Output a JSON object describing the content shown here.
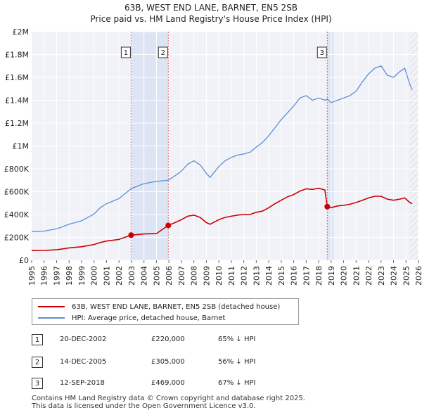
{
  "chart_data": {
    "type": "line",
    "title": "63B, WEST END LANE, BARNET, EN5 2SB",
    "subtitle": "Price paid vs. HM Land Registry's House Price Index (HPI)",
    "xlabel": "",
    "ylabel": "",
    "xlim": [
      1995,
      2026
    ],
    "ylim": [
      0,
      2000000
    ],
    "x_ticks": [
      "1995",
      "1996",
      "1997",
      "1998",
      "1999",
      "2000",
      "2001",
      "2002",
      "2003",
      "2004",
      "2005",
      "2006",
      "2007",
      "2008",
      "2009",
      "2010",
      "2011",
      "2012",
      "2013",
      "2014",
      "2015",
      "2016",
      "2017",
      "2018",
      "2019",
      "2020",
      "2021",
      "2022",
      "2023",
      "2024",
      "2025",
      "2026"
    ],
    "y_ticks": [
      {
        "value": 0,
        "label": "£0"
      },
      {
        "value": 200000,
        "label": "£200K"
      },
      {
        "value": 400000,
        "label": "£400K"
      },
      {
        "value": 600000,
        "label": "£600K"
      },
      {
        "value": 800000,
        "label": "£800K"
      },
      {
        "value": 1000000,
        "label": "£1M"
      },
      {
        "value": 1200000,
        "label": "£1.2M"
      },
      {
        "value": 1400000,
        "label": "£1.4M"
      },
      {
        "value": 1600000,
        "label": "£1.6M"
      },
      {
        "value": 1800000,
        "label": "£1.8M"
      },
      {
        "value": 2000000,
        "label": "£2M"
      }
    ],
    "grid": true,
    "series": [
      {
        "name": "63B, WEST END LANE, BARNET, EN5 2SB (detached house)",
        "color": "#cc0000",
        "points": [
          [
            1995.0,
            85000
          ],
          [
            1996.0,
            86000
          ],
          [
            1997.0,
            92000
          ],
          [
            1997.5,
            100000
          ],
          [
            1998.0,
            108000
          ],
          [
            1999.0,
            118000
          ],
          [
            2000.0,
            138000
          ],
          [
            2000.5,
            155000
          ],
          [
            2001.0,
            168000
          ],
          [
            2002.0,
            182000
          ],
          [
            2002.97,
            220000
          ],
          [
            2003.5,
            225000
          ],
          [
            2004.0,
            230000
          ],
          [
            2005.0,
            233000
          ],
          [
            2005.95,
            305000
          ],
          [
            2006.5,
            330000
          ],
          [
            2007.0,
            355000
          ],
          [
            2007.5,
            385000
          ],
          [
            2008.0,
            395000
          ],
          [
            2008.5,
            375000
          ],
          [
            2009.0,
            330000
          ],
          [
            2009.3,
            315000
          ],
          [
            2010.0,
            355000
          ],
          [
            2010.5,
            375000
          ],
          [
            2011.0,
            385000
          ],
          [
            2011.5,
            395000
          ],
          [
            2012.0,
            400000
          ],
          [
            2012.5,
            400000
          ],
          [
            2013.0,
            420000
          ],
          [
            2013.5,
            430000
          ],
          [
            2014.0,
            460000
          ],
          [
            2014.5,
            495000
          ],
          [
            2015.0,
            525000
          ],
          [
            2015.5,
            555000
          ],
          [
            2016.0,
            575000
          ],
          [
            2016.5,
            605000
          ],
          [
            2017.0,
            625000
          ],
          [
            2017.5,
            620000
          ],
          [
            2018.0,
            630000
          ],
          [
            2018.5,
            615000
          ],
          [
            2018.69,
            469000
          ],
          [
            2019.0,
            460000
          ],
          [
            2019.5,
            475000
          ],
          [
            2020.0,
            480000
          ],
          [
            2020.5,
            490000
          ],
          [
            2021.0,
            505000
          ],
          [
            2021.5,
            525000
          ],
          [
            2022.0,
            545000
          ],
          [
            2022.5,
            560000
          ],
          [
            2023.0,
            560000
          ],
          [
            2023.5,
            535000
          ],
          [
            2024.0,
            525000
          ],
          [
            2024.5,
            535000
          ],
          [
            2024.9,
            545000
          ],
          [
            2025.3,
            505000
          ],
          [
            2025.5,
            495000
          ]
        ]
      },
      {
        "name": "HPI: Average price, detached house, Barnet",
        "color": "#5b8fd4",
        "points": [
          [
            1995.0,
            250000
          ],
          [
            1996.0,
            255000
          ],
          [
            1997.0,
            275000
          ],
          [
            1997.5,
            295000
          ],
          [
            1998.0,
            315000
          ],
          [
            1999.0,
            345000
          ],
          [
            2000.0,
            405000
          ],
          [
            2000.5,
            460000
          ],
          [
            2001.0,
            495000
          ],
          [
            2002.0,
            540000
          ],
          [
            2002.97,
            625000
          ],
          [
            2003.5,
            650000
          ],
          [
            2004.0,
            670000
          ],
          [
            2005.0,
            690000
          ],
          [
            2005.95,
            700000
          ],
          [
            2006.5,
            740000
          ],
          [
            2007.0,
            780000
          ],
          [
            2007.5,
            840000
          ],
          [
            2008.0,
            870000
          ],
          [
            2008.5,
            835000
          ],
          [
            2009.0,
            760000
          ],
          [
            2009.3,
            725000
          ],
          [
            2010.0,
            820000
          ],
          [
            2010.5,
            870000
          ],
          [
            2011.0,
            900000
          ],
          [
            2011.5,
            920000
          ],
          [
            2012.0,
            930000
          ],
          [
            2012.5,
            945000
          ],
          [
            2013.0,
            990000
          ],
          [
            2013.5,
            1030000
          ],
          [
            2014.0,
            1090000
          ],
          [
            2014.5,
            1160000
          ],
          [
            2015.0,
            1230000
          ],
          [
            2015.5,
            1290000
          ],
          [
            2016.0,
            1350000
          ],
          [
            2016.5,
            1420000
          ],
          [
            2017.0,
            1440000
          ],
          [
            2017.5,
            1400000
          ],
          [
            2018.0,
            1420000
          ],
          [
            2018.5,
            1400000
          ],
          [
            2018.69,
            1410000
          ],
          [
            2019.0,
            1380000
          ],
          [
            2019.5,
            1400000
          ],
          [
            2020.0,
            1420000
          ],
          [
            2020.5,
            1440000
          ],
          [
            2021.0,
            1480000
          ],
          [
            2021.5,
            1560000
          ],
          [
            2022.0,
            1630000
          ],
          [
            2022.5,
            1680000
          ],
          [
            2023.0,
            1700000
          ],
          [
            2023.5,
            1620000
          ],
          [
            2024.0,
            1600000
          ],
          [
            2024.5,
            1650000
          ],
          [
            2024.9,
            1680000
          ],
          [
            2025.3,
            1540000
          ],
          [
            2025.5,
            1490000
          ]
        ]
      }
    ],
    "sales": [
      {
        "marker": "1",
        "x": 2002.97,
        "price": 220000,
        "date": "20-DEC-2002",
        "price_label": "£220,000",
        "hpi_label": "65% ↓ HPI"
      },
      {
        "marker": "2",
        "x": 2005.95,
        "price": 305000,
        "date": "14-DEC-2005",
        "price_label": "£305,000",
        "hpi_label": "56% ↓ HPI"
      },
      {
        "marker": "3",
        "x": 2018.69,
        "price": 469000,
        "date": "12-SEP-2018",
        "price_label": "£469,000",
        "hpi_label": "67% ↓ HPI"
      }
    ],
    "sale_shading": [
      [
        2002.97,
        2005.95
      ],
      [
        2018.69,
        2019.2
      ]
    ],
    "forecast_start": 2025.3
  },
  "legend": {
    "items": [
      {
        "label": "63B, WEST END LANE, BARNET, EN5 2SB (detached house)",
        "color": "#cc0000"
      },
      {
        "label": "HPI: Average price, detached house, Barnet",
        "color": "#5b8fd4"
      }
    ]
  },
  "footer": {
    "line1": "Contains HM Land Registry data © Crown copyright and database right 2025.",
    "line2": "This data is licensed under the Open Government Licence v3.0."
  }
}
